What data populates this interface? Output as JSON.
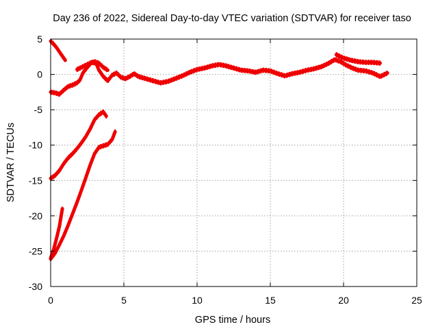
{
  "chart_data": {
    "type": "line",
    "title": "Day 236 of 2022, Sidereal Day-to-day VTEC variation (SDTVAR) for receiver taso",
    "xlabel": "GPS time / hours",
    "ylabel": "SDTVAR / TECUs",
    "xlim": [
      0,
      25
    ],
    "ylim": [
      -30,
      5
    ],
    "xticks": [
      0,
      5,
      10,
      15,
      20,
      25
    ],
    "yticks": [
      5,
      0,
      -5,
      -10,
      -15,
      -20,
      -25,
      -30
    ],
    "grid": true,
    "color": "#ee0000",
    "series": [
      {
        "name": "arc-start-high",
        "x": [
          0.0,
          0.2,
          0.4,
          0.6,
          0.8,
          1.0
        ],
        "y": [
          4.7,
          4.3,
          3.8,
          3.2,
          2.6,
          2.0
        ]
      },
      {
        "name": "arc-main-track",
        "x": [
          0.0,
          0.3,
          0.6,
          0.9,
          1.2,
          1.5,
          1.8,
          2.0,
          2.2,
          2.5,
          2.8,
          3.1,
          3.3,
          3.6,
          3.9,
          4.2,
          4.5,
          4.8,
          5.1,
          5.4,
          5.7,
          6.0,
          6.5,
          7.0,
          7.5,
          8.0,
          8.5,
          9.0,
          9.5,
          10.0,
          10.5,
          11.0,
          11.5,
          12.0,
          12.5,
          13.0,
          13.5,
          14.0,
          14.5,
          15.0,
          15.5,
          16.0,
          16.5,
          17.0,
          17.5,
          18.0,
          18.5,
          19.0,
          19.4,
          19.8,
          20.2,
          20.6,
          21.0,
          21.5,
          22.0,
          22.5,
          23.0
        ],
        "y": [
          -2.5,
          -2.6,
          -2.8,
          -2.2,
          -1.7,
          -1.5,
          -1.2,
          -0.8,
          0.2,
          1.0,
          1.7,
          1.6,
          0.6,
          -0.3,
          -0.9,
          -0.1,
          0.2,
          -0.4,
          -0.6,
          -0.3,
          0.1,
          -0.3,
          -0.6,
          -0.9,
          -1.2,
          -1.0,
          -0.6,
          -0.2,
          0.3,
          0.7,
          0.9,
          1.2,
          1.4,
          1.2,
          0.9,
          0.6,
          0.5,
          0.3,
          0.6,
          0.5,
          0.1,
          -0.2,
          0.1,
          0.3,
          0.6,
          0.8,
          1.1,
          1.6,
          2.1,
          1.8,
          1.3,
          0.9,
          0.6,
          0.5,
          0.2,
          -0.3,
          0.2
        ]
      },
      {
        "name": "arc-upper-left-bump",
        "x": [
          1.8,
          2.1,
          2.4,
          2.7,
          3.0,
          3.3,
          3.6,
          3.9
        ],
        "y": [
          0.7,
          1.0,
          1.3,
          1.6,
          1.8,
          1.6,
          1.0,
          0.6
        ]
      },
      {
        "name": "arc-late-upper",
        "x": [
          19.5,
          20.0,
          20.5,
          21.0,
          21.5,
          22.0,
          22.5
        ],
        "y": [
          2.8,
          2.3,
          2.0,
          1.8,
          1.7,
          1.7,
          1.6
        ]
      },
      {
        "name": "arc-rise-upper",
        "x": [
          0.0,
          0.3,
          0.6,
          0.9,
          1.2,
          1.5,
          1.8,
          2.1,
          2.4,
          2.7,
          3.0,
          3.3,
          3.6,
          3.8
        ],
        "y": [
          -14.7,
          -14.3,
          -13.6,
          -12.6,
          -11.8,
          -11.2,
          -10.5,
          -9.7,
          -8.8,
          -7.7,
          -6.4,
          -5.7,
          -5.3,
          -5.9
        ]
      },
      {
        "name": "arc-rise-lower",
        "x": [
          0.0,
          0.3,
          0.6,
          0.9,
          1.2,
          1.5,
          1.8,
          2.1,
          2.4,
          2.7,
          3.0,
          3.3,
          3.6,
          3.9,
          4.2,
          4.4
        ],
        "y": [
          -26.1,
          -25.3,
          -24.1,
          -22.8,
          -21.3,
          -19.7,
          -18.1,
          -16.4,
          -14.6,
          -12.8,
          -11.2,
          -10.3,
          -10.1,
          -9.9,
          -9.2,
          -8.1
        ]
      },
      {
        "name": "arc-rise-short",
        "x": [
          0.0,
          0.2,
          0.4,
          0.6,
          0.8
        ],
        "y": [
          -26.0,
          -24.8,
          -23.2,
          -21.5,
          -19.0
        ]
      }
    ]
  }
}
